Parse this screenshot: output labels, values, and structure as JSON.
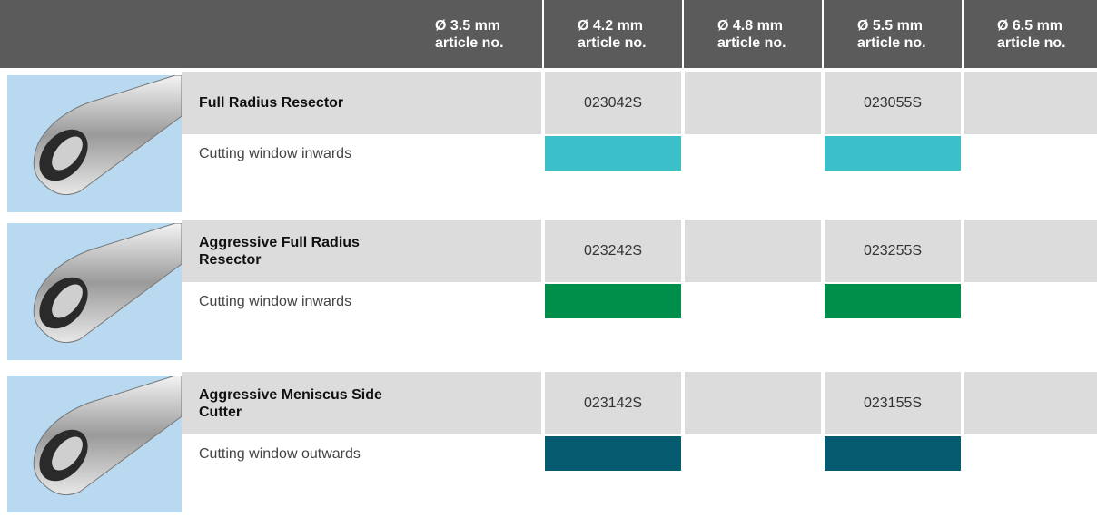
{
  "header": {
    "columns": [
      {
        "size": "Ø 3.5 mm",
        "label": "article no."
      },
      {
        "size": "Ø 4.2 mm",
        "label": "article no."
      },
      {
        "size": "Ø 4.8 mm",
        "label": "article no."
      },
      {
        "size": "Ø 5.5 mm",
        "label": "article no."
      },
      {
        "size": "Ø 6.5 mm",
        "label": "article no."
      }
    ]
  },
  "rows": [
    {
      "name": "Full Radius Resector",
      "description": "Cutting window inwards",
      "color": "#3bbfc8",
      "articles": [
        null,
        "023042S",
        null,
        "023055S",
        null
      ]
    },
    {
      "name": "Aggressive Full Radius Resector",
      "description": "Cutting window inwards",
      "color": "#008f4b",
      "articles": [
        null,
        "023242S",
        null,
        "023255S",
        null
      ]
    },
    {
      "name": "Aggressive Meniscus Side Cutter",
      "description": "Cutting window outwards",
      "color": "#065b70",
      "articles": [
        null,
        "023142S",
        null,
        "023155S",
        null
      ]
    }
  ]
}
